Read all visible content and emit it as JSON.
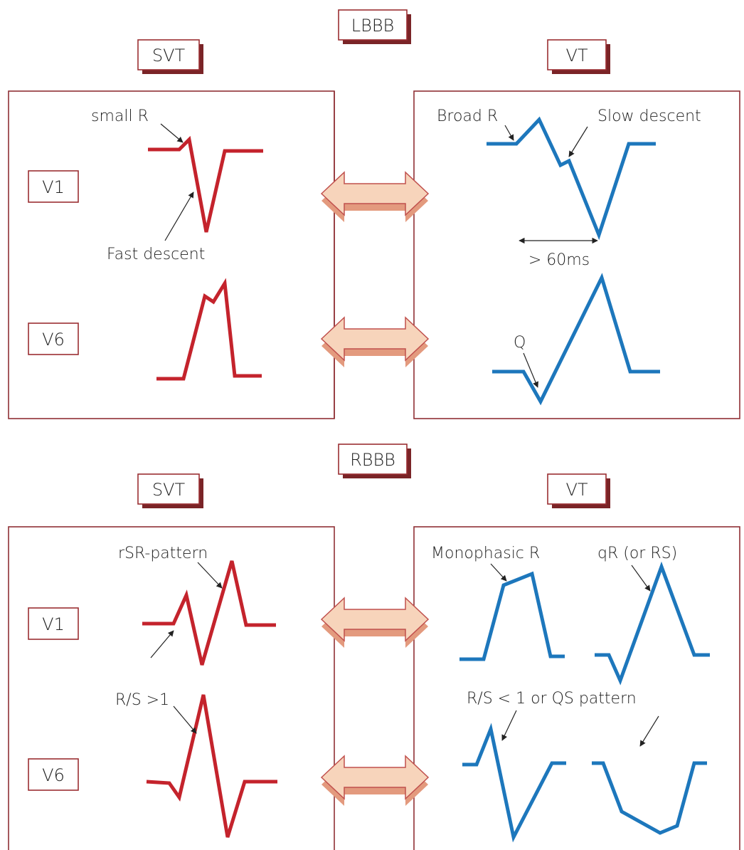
{
  "lbbb": {
    "title": "LBBB",
    "svt": {
      "header": "SVT",
      "lead_v1": "V1",
      "lead_v6": "V6",
      "annotation_small_r": "small R",
      "annotation_fast_descent": "Fast descent"
    },
    "vt": {
      "header": "VT",
      "annotation_broad_r": "Broad R",
      "annotation_slow_descent": "Slow descent",
      "annotation_duration": "> 60ms",
      "annotation_q": "Q"
    }
  },
  "rbbb": {
    "title": "RBBB",
    "svt": {
      "header": "SVT",
      "lead_v1": "V1",
      "lead_v6": "V6",
      "annotation_rsr": "rSR-pattern",
      "annotation_rs_ratio": "R/S >1"
    },
    "vt": {
      "header": "VT",
      "annotation_monophasic": "Monophasic R",
      "annotation_qr": "qR (or RS)",
      "annotation_rs_qs": "R/S < 1 or QS pattern"
    }
  },
  "colors": {
    "svt_trace": "#c4232c",
    "vt_trace": "#1d77bc",
    "frame": "#8f3035",
    "arrow_fill": "#f7d4bb"
  }
}
